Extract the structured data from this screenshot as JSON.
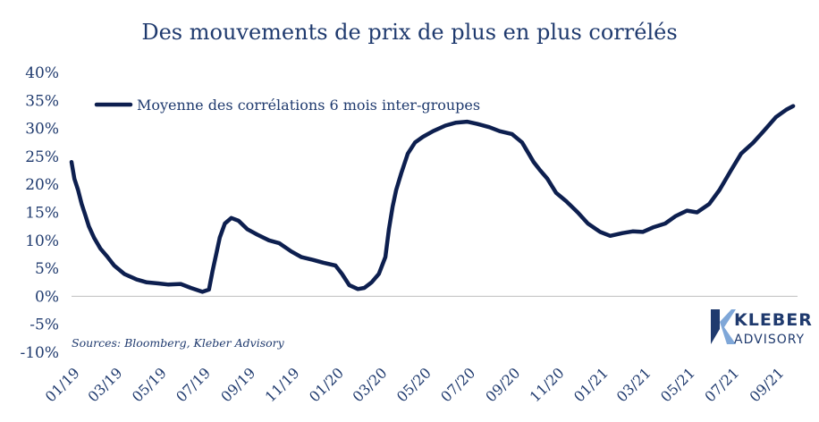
{
  "chart_data": {
    "type": "line",
    "title": "Des mouvements  de prix de plus en plus corrélés",
    "source": "Sources: Bloomberg, Kleber Advisory",
    "legend": {
      "position": "top-left"
    },
    "ylim": [
      -10,
      40
    ],
    "yticks": [
      -10,
      -5,
      0,
      5,
      10,
      15,
      20,
      25,
      30,
      35,
      40
    ],
    "ytick_labels": [
      "-10%",
      "-5%",
      "0%",
      "5%",
      "10%",
      "15%",
      "20%",
      "25%",
      "30%",
      "35%",
      "40%"
    ],
    "xlim": [
      "2019-01",
      "2021-10"
    ],
    "xticks": [
      "2019-01",
      "2019-03",
      "2019-05",
      "2019-07",
      "2019-09",
      "2019-11",
      "2020-01",
      "2020-03",
      "2020-05",
      "2020-07",
      "2020-09",
      "2020-11",
      "2021-01",
      "2021-03",
      "2021-05",
      "2021-07",
      "2021-09"
    ],
    "xtick_labels": [
      "01/19",
      "03/19",
      "05/19",
      "07/19",
      "09/19",
      "11/19",
      "01/20",
      "03/20",
      "05/20",
      "07/20",
      "09/20",
      "11/20",
      "01/21",
      "03/21",
      "05/21",
      "07/21",
      "09/21"
    ],
    "grid": false,
    "series": [
      {
        "name": "Moyenne des corrélations 6 mois inter-groupes",
        "color": "#0d1f4f",
        "x": [
          "2019-01-01",
          "2019-01-05",
          "2019-01-10",
          "2019-01-15",
          "2019-01-20",
          "2019-01-25",
          "2019-02-01",
          "2019-02-10",
          "2019-02-20",
          "2019-03-01",
          "2019-03-15",
          "2019-04-01",
          "2019-04-15",
          "2019-05-01",
          "2019-05-15",
          "2019-06-01",
          "2019-06-15",
          "2019-07-01",
          "2019-07-10",
          "2019-07-15",
          "2019-07-20",
          "2019-07-25",
          "2019-08-01",
          "2019-08-10",
          "2019-08-20",
          "2019-09-01",
          "2019-09-15",
          "2019-10-01",
          "2019-10-15",
          "2019-11-01",
          "2019-11-15",
          "2019-12-01",
          "2019-12-15",
          "2020-01-01",
          "2020-01-10",
          "2020-01-20",
          "2020-02-01",
          "2020-02-10",
          "2020-02-20",
          "2020-03-01",
          "2020-03-10",
          "2020-03-15",
          "2020-03-20",
          "2020-03-25",
          "2020-04-01",
          "2020-04-10",
          "2020-04-20",
          "2020-05-01",
          "2020-05-15",
          "2020-06-01",
          "2020-06-15",
          "2020-07-01",
          "2020-07-15",
          "2020-08-01",
          "2020-08-15",
          "2020-09-01",
          "2020-09-15",
          "2020-10-01",
          "2020-10-10",
          "2020-10-20",
          "2020-11-01",
          "2020-11-15",
          "2020-12-01",
          "2020-12-15",
          "2021-01-01",
          "2021-01-15",
          "2021-02-01",
          "2021-02-15",
          "2021-03-01",
          "2021-03-15",
          "2021-04-01",
          "2021-04-15",
          "2021-05-01",
          "2021-05-15",
          "2021-06-01",
          "2021-06-15",
          "2021-07-01",
          "2021-07-15",
          "2021-08-01",
          "2021-08-15",
          "2021-09-01",
          "2021-09-15",
          "2021-09-25"
        ],
        "y": [
          24,
          21,
          19,
          16.5,
          14.5,
          12.5,
          10.5,
          8.5,
          7,
          5.5,
          4,
          3,
          2.5,
          2.3,
          2.1,
          2.2,
          1.5,
          0.8,
          1.2,
          4.5,
          7.5,
          10.5,
          13,
          14,
          13.5,
          12,
          11,
          10,
          9.5,
          8,
          7,
          6.5,
          6,
          5.5,
          4,
          2,
          1.3,
          1.5,
          2.5,
          4,
          7,
          12,
          16,
          19,
          22,
          25.5,
          27.5,
          28.5,
          29.5,
          30.5,
          31,
          31.2,
          30.8,
          30.2,
          29.5,
          29,
          27.5,
          24,
          22.5,
          21,
          18.5,
          17,
          15,
          13,
          11.5,
          10.8,
          11.3,
          11.6,
          11.5,
          12.3,
          13,
          14.3,
          15.3,
          15,
          16.5,
          19,
          22.5,
          25.5,
          27.5,
          29.5,
          32,
          33.3,
          34
        ]
      }
    ]
  }
}
